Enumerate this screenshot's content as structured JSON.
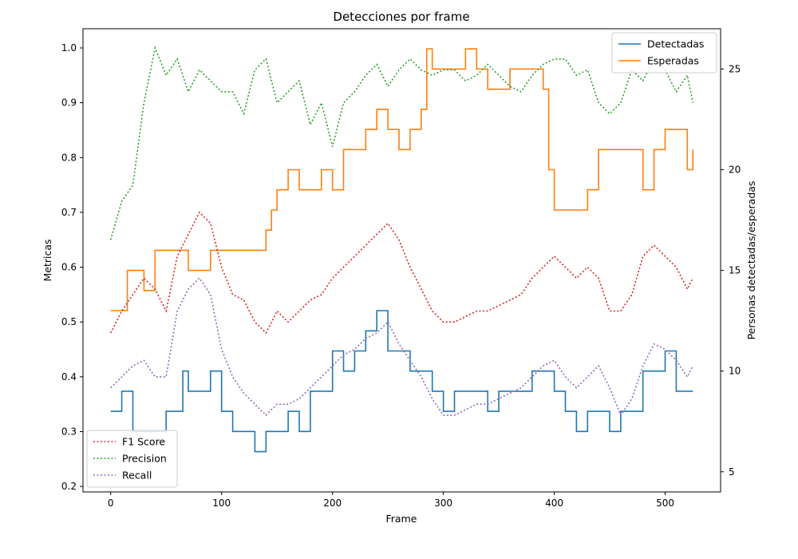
{
  "chart_data": {
    "type": "line",
    "title": "Detecciones por frame",
    "xlabel": "Frame",
    "ylabel_left": "Metricas",
    "ylabel_right": "Personas detectadas/esperadas",
    "xlim": [
      -25,
      550
    ],
    "ylim_left": [
      0.19,
      1.035
    ],
    "ylim_right": [
      4,
      27
    ],
    "x_ticks": [
      0,
      100,
      200,
      300,
      400,
      500
    ],
    "y_ticks_left": [
      0.2,
      0.3,
      0.4,
      0.5,
      0.6,
      0.7,
      0.8,
      0.9,
      1.0
    ],
    "y_ticks_right": [
      5,
      10,
      15,
      20,
      25
    ],
    "grid": false,
    "legend_right_axis": {
      "placement": "top-right",
      "entries": [
        "Detectadas",
        "Esperadas"
      ]
    },
    "legend_left_axis": {
      "placement": "bottom-left",
      "entries": [
        "F1 Score",
        "Precision",
        "Recall"
      ]
    },
    "series": [
      {
        "name": "Detectadas",
        "axis": "right",
        "style": "solid",
        "color": "#1f77b4",
        "x": [
          0,
          10,
          20,
          30,
          40,
          50,
          60,
          65,
          70,
          80,
          90,
          100,
          110,
          120,
          130,
          140,
          150,
          160,
          170,
          180,
          190,
          200,
          210,
          220,
          230,
          240,
          250,
          260,
          270,
          280,
          290,
          300,
          310,
          320,
          330,
          340,
          350,
          360,
          370,
          380,
          390,
          400,
          410,
          420,
          430,
          440,
          450,
          460,
          470,
          480,
          490,
          500,
          510,
          520,
          525
        ],
        "y": [
          8,
          9,
          7,
          7,
          7,
          8,
          8,
          10,
          9,
          9,
          10,
          8,
          7,
          7,
          6,
          7,
          7,
          8,
          7,
          9,
          9,
          11,
          10,
          11,
          12,
          13,
          11,
          11,
          10,
          10,
          9,
          8,
          9,
          9,
          9,
          8,
          9,
          9,
          9,
          10,
          10,
          9,
          8,
          7,
          8,
          8,
          7,
          8,
          8,
          10,
          10,
          11,
          9,
          9,
          9
        ]
      },
      {
        "name": "Esperadas",
        "axis": "right",
        "style": "solid",
        "color": "#ff7f0e",
        "x": [
          0,
          10,
          15,
          25,
          30,
          40,
          50,
          60,
          70,
          80,
          90,
          100,
          110,
          120,
          130,
          140,
          145,
          150,
          160,
          170,
          180,
          190,
          200,
          210,
          220,
          230,
          240,
          250,
          260,
          270,
          280,
          285,
          290,
          300,
          310,
          320,
          330,
          340,
          350,
          360,
          370,
          380,
          390,
          395,
          400,
          410,
          420,
          430,
          440,
          450,
          460,
          470,
          480,
          490,
          500,
          510,
          520,
          525
        ],
        "y": [
          13,
          13,
          15,
          15,
          14,
          16,
          16,
          16,
          15,
          15,
          16,
          16,
          16,
          16,
          16,
          17,
          18,
          19,
          20,
          19,
          19,
          20,
          19,
          21,
          21,
          22,
          23,
          22,
          21,
          22,
          23,
          26,
          25,
          25,
          25,
          26,
          25,
          24,
          24,
          25,
          25,
          25,
          24,
          20,
          18,
          18,
          18,
          19,
          21,
          21,
          21,
          21,
          19,
          21,
          22,
          22,
          20,
          21
        ]
      },
      {
        "name": "F1 Score",
        "axis": "left",
        "style": "dotted",
        "color": "#d62728",
        "x": [
          0,
          10,
          20,
          30,
          40,
          50,
          60,
          70,
          80,
          90,
          100,
          110,
          120,
          130,
          140,
          150,
          160,
          170,
          180,
          190,
          200,
          210,
          220,
          230,
          240,
          250,
          260,
          270,
          280,
          290,
          300,
          310,
          320,
          330,
          340,
          350,
          360,
          370,
          380,
          390,
          400,
          410,
          420,
          430,
          440,
          450,
          460,
          470,
          480,
          490,
          500,
          510,
          520,
          525
        ],
        "y": [
          0.48,
          0.52,
          0.55,
          0.58,
          0.56,
          0.52,
          0.62,
          0.66,
          0.7,
          0.68,
          0.6,
          0.55,
          0.54,
          0.5,
          0.48,
          0.52,
          0.5,
          0.52,
          0.54,
          0.55,
          0.58,
          0.6,
          0.62,
          0.64,
          0.66,
          0.68,
          0.65,
          0.6,
          0.56,
          0.52,
          0.5,
          0.5,
          0.51,
          0.52,
          0.52,
          0.53,
          0.54,
          0.55,
          0.58,
          0.6,
          0.62,
          0.6,
          0.58,
          0.6,
          0.58,
          0.52,
          0.52,
          0.55,
          0.62,
          0.64,
          0.62,
          0.6,
          0.56,
          0.58
        ]
      },
      {
        "name": "Precision",
        "axis": "left",
        "style": "dotted",
        "color": "#2ca02c",
        "x": [
          0,
          10,
          20,
          30,
          40,
          50,
          60,
          70,
          80,
          90,
          100,
          110,
          120,
          130,
          140,
          150,
          160,
          170,
          180,
          190,
          200,
          210,
          220,
          230,
          240,
          250,
          260,
          270,
          280,
          290,
          300,
          310,
          320,
          330,
          340,
          350,
          360,
          370,
          380,
          390,
          400,
          410,
          420,
          430,
          440,
          450,
          460,
          470,
          480,
          490,
          500,
          510,
          520,
          525
        ],
        "y": [
          0.65,
          0.72,
          0.75,
          0.9,
          1.0,
          0.95,
          0.98,
          0.92,
          0.96,
          0.94,
          0.92,
          0.92,
          0.88,
          0.96,
          0.98,
          0.9,
          0.92,
          0.94,
          0.86,
          0.9,
          0.82,
          0.9,
          0.92,
          0.95,
          0.97,
          0.93,
          0.96,
          0.98,
          0.96,
          0.95,
          0.96,
          0.96,
          0.94,
          0.95,
          0.97,
          0.95,
          0.93,
          0.92,
          0.95,
          0.97,
          0.98,
          0.98,
          0.95,
          0.96,
          0.9,
          0.88,
          0.9,
          0.96,
          0.94,
          0.98,
          0.96,
          0.92,
          0.95,
          0.9
        ]
      },
      {
        "name": "Recall",
        "axis": "left",
        "style": "dotted",
        "color": "#9467bd",
        "x": [
          0,
          10,
          20,
          30,
          40,
          50,
          60,
          70,
          80,
          90,
          100,
          110,
          120,
          130,
          140,
          150,
          160,
          170,
          180,
          190,
          200,
          210,
          220,
          230,
          240,
          250,
          260,
          270,
          280,
          290,
          300,
          310,
          320,
          330,
          340,
          350,
          360,
          370,
          380,
          390,
          400,
          410,
          420,
          430,
          440,
          450,
          460,
          470,
          480,
          490,
          500,
          510,
          520,
          525
        ],
        "y": [
          0.38,
          0.4,
          0.42,
          0.43,
          0.4,
          0.4,
          0.52,
          0.56,
          0.58,
          0.55,
          0.45,
          0.4,
          0.37,
          0.35,
          0.33,
          0.35,
          0.35,
          0.36,
          0.38,
          0.4,
          0.42,
          0.44,
          0.45,
          0.47,
          0.48,
          0.5,
          0.46,
          0.43,
          0.4,
          0.36,
          0.33,
          0.33,
          0.34,
          0.35,
          0.35,
          0.36,
          0.37,
          0.38,
          0.4,
          0.42,
          0.43,
          0.4,
          0.38,
          0.4,
          0.42,
          0.38,
          0.33,
          0.36,
          0.42,
          0.46,
          0.45,
          0.43,
          0.4,
          0.42
        ]
      }
    ]
  }
}
